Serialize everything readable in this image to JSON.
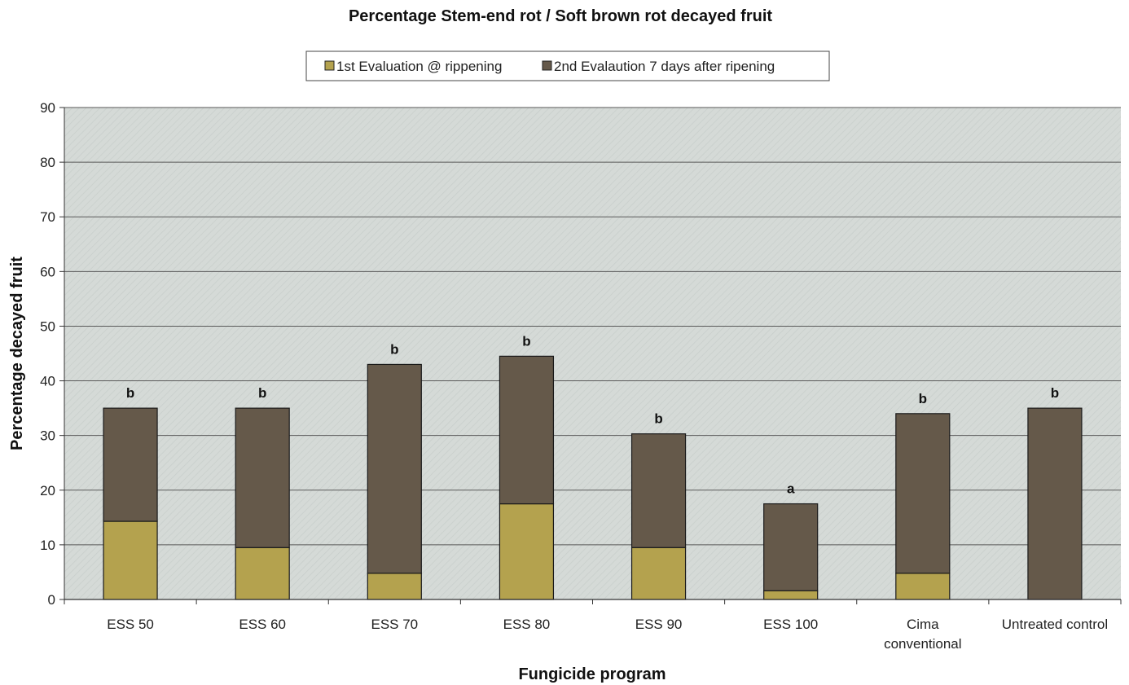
{
  "chart_data": {
    "type": "bar",
    "stacked": true,
    "title": "Percentage Stem-end rot / Soft brown rot decayed fruit",
    "xlabel": "Fungicide program",
    "ylabel": "Percentage decayed fruit",
    "ylim": [
      0,
      90
    ],
    "yticks": [
      0,
      10,
      20,
      30,
      40,
      50,
      60,
      70,
      80,
      90
    ],
    "grid": true,
    "legend_position": "top-center",
    "categories": [
      [
        "ESS 50"
      ],
      [
        "ESS 60"
      ],
      [
        "ESS 70"
      ],
      [
        "ESS 80"
      ],
      [
        "ESS 90"
      ],
      [
        "ESS 100"
      ],
      [
        "Cima",
        "conventional"
      ],
      [
        "Untreated control"
      ]
    ],
    "series": [
      {
        "name": "1st Evaluation @ rippening",
        "color": "#b4a24e",
        "values": [
          14.3,
          9.5,
          4.8,
          17.5,
          9.5,
          1.6,
          4.8,
          0
        ]
      },
      {
        "name": "2nd Evalaution 7 days after ripening",
        "color": "#65594a",
        "values": [
          20.7,
          25.5,
          38.2,
          27.0,
          20.8,
          15.9,
          29.2,
          35.0
        ]
      }
    ],
    "totals": [
      35.0,
      35.0,
      43.0,
      44.5,
      30.3,
      17.5,
      34.0,
      35.0
    ],
    "significance_labels": [
      "b",
      "b",
      "b",
      "b",
      "b",
      "a",
      "b",
      "b"
    ],
    "plot_background": "#d6dbd8",
    "grid_color": "#5a5a5a"
  }
}
